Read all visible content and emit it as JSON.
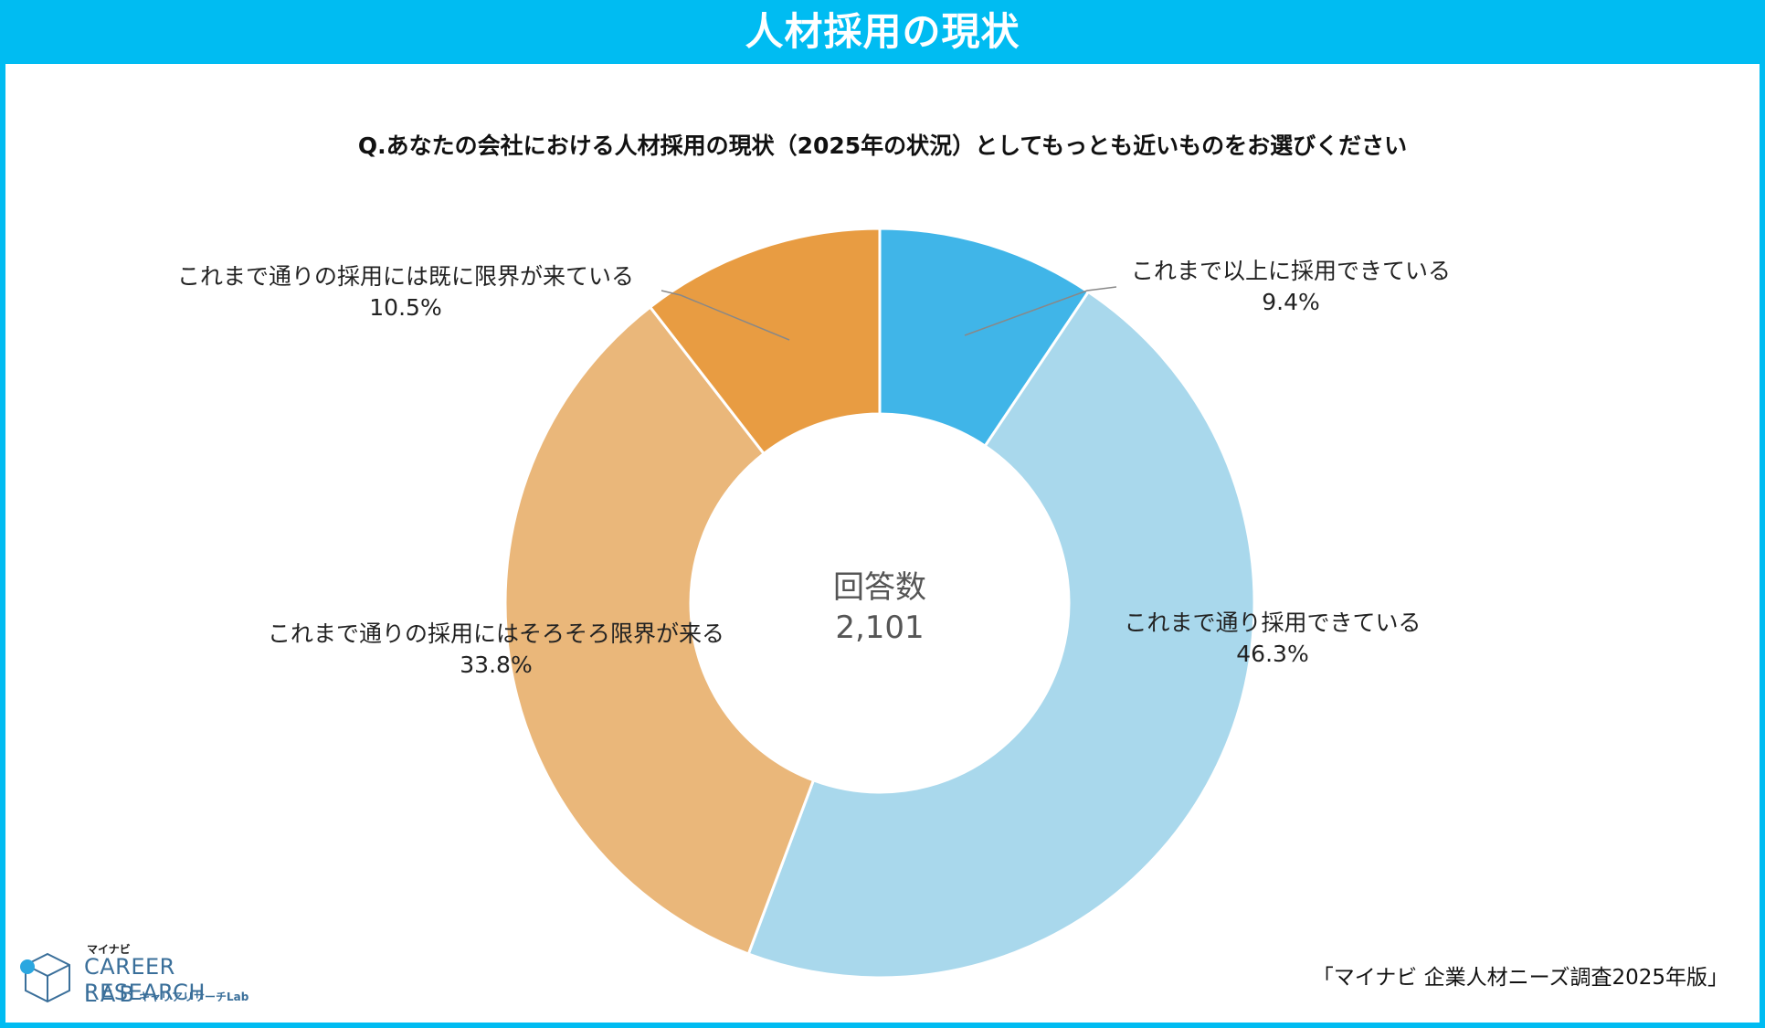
{
  "header": {
    "title": "人材採用の現状"
  },
  "question": "Q.あなたの会社における人材採用の現状（2025年の状況）としてもっとも近いものをお選びください",
  "center": {
    "label": "回答数",
    "value": "2,101"
  },
  "source": "「マイナビ 企業人材ニーズ調査2025年版」",
  "logo": {
    "top": "マイナビ",
    "line1": "CAREER RESEARCH",
    "line2": "LAB",
    "sub": "キャリアリサーチLab"
  },
  "chart_data": {
    "type": "pie",
    "title": "人材採用の現状",
    "slices": [
      {
        "label": "これまで以上に採用できている",
        "value": 9.4,
        "display": "9.4%",
        "color": "#40b5e8"
      },
      {
        "label": "これまで通り採用できている",
        "value": 46.3,
        "display": "46.3%",
        "color": "#a9d8ec"
      },
      {
        "label": "これまで通りの採用にはそろそろ限界が来る",
        "value": 33.8,
        "display": "33.8%",
        "color": "#eab77a"
      },
      {
        "label": "これまで通りの採用には既に限界が来ている",
        "value": 10.5,
        "display": "10.5%",
        "color": "#e89c42"
      }
    ],
    "total_responses": 2101
  }
}
